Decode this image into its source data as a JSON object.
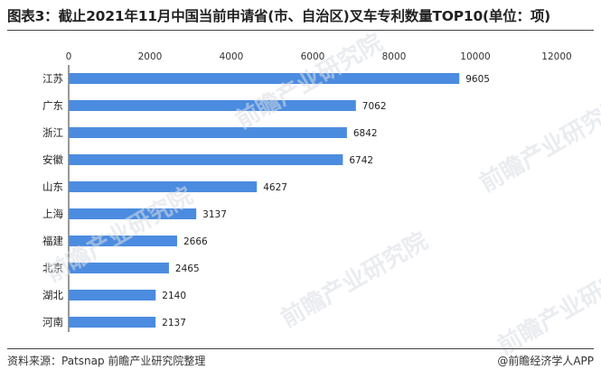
{
  "chart_data": {
    "type": "bar",
    "orientation": "horizontal",
    "title": "图表3：截止2021年11月中国当前申请省(市、自治区)叉车专利数量TOP10(单位：项)",
    "categories": [
      "江苏",
      "广东",
      "浙江",
      "安徽",
      "山东",
      "上海",
      "福建",
      "北京",
      "湖北",
      "河南"
    ],
    "values": [
      9605,
      7062,
      6842,
      6742,
      4627,
      3137,
      2666,
      2465,
      2140,
      2137
    ],
    "value_labels": [
      "9605",
      "7062",
      "6842",
      "6742",
      "4627",
      "3137",
      "2666",
      "2465",
      "2140",
      "2137"
    ],
    "xticks": [
      "0",
      "2000",
      "4000",
      "6000",
      "8000",
      "10000",
      "12000"
    ],
    "xlim": [
      0,
      12000
    ],
    "grid": false,
    "legend": "none",
    "bar_color": "#4b8ce0"
  },
  "footer": {
    "source": "资料来源：Patsnap 前瞻产业研究院整理",
    "brand": "@前瞻经济学人APP"
  }
}
